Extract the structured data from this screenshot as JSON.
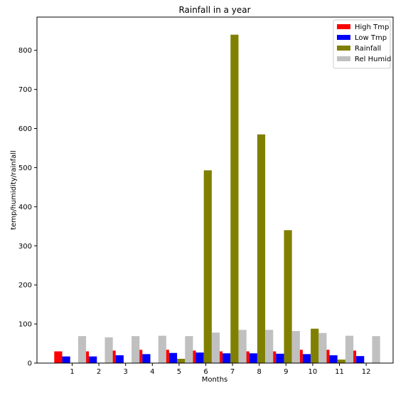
{
  "chart_data": {
    "type": "bar",
    "title": "Rainfall in a year",
    "xlabel": "Months",
    "ylabel": "temp/humidity/rainfall",
    "categories": [
      "1",
      "2",
      "3",
      "4",
      "5",
      "6",
      "7",
      "8",
      "9",
      "10",
      "11",
      "12"
    ],
    "ylim": [
      0,
      885
    ],
    "yticks": [
      0,
      100,
      200,
      300,
      400,
      500,
      600,
      700,
      800
    ],
    "legend_position": "top-right",
    "series": [
      {
        "name": "High Tmp",
        "color": "#ff0000",
        "values": [
          30,
          30,
          32,
          34,
          34,
          32,
          30,
          30,
          30,
          34,
          34,
          32
        ]
      },
      {
        "name": "Low Tmp",
        "color": "#0000ff",
        "values": [
          17,
          17,
          20,
          23,
          26,
          27,
          25,
          25,
          24,
          23,
          20,
          18
        ]
      },
      {
        "name": "Rainfall",
        "color": "#808000",
        "values": [
          1,
          1,
          0,
          0,
          11,
          493,
          840,
          585,
          340,
          88,
          9,
          1
        ]
      },
      {
        "name": "Rel Humid",
        "color": "#c0c0c0",
        "values": [
          69,
          66,
          69,
          70,
          69,
          78,
          85,
          85,
          82,
          77,
          70,
          69
        ]
      }
    ]
  }
}
